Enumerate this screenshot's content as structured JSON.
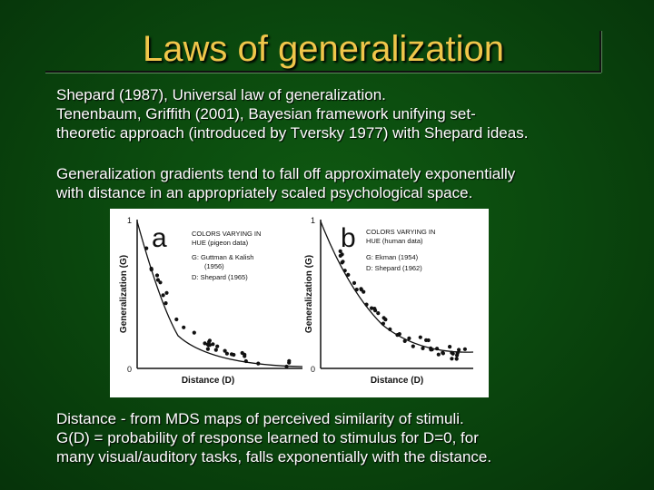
{
  "slide": {
    "title": "Laws of generalization",
    "para1": [
      "Shepard (1987), Universal law of generalization.",
      "Tenenbaum, Griffith (2001), Bayesian framework unifying set-",
      "theoretic approach (introduced by Tversky 1977) with Shepard ideas."
    ],
    "para2": [
      "Generalization gradients tend to fall off approximately exponentially",
      "with distance in an appropriately scaled psychological space."
    ],
    "para3": [
      "Distance - from MDS maps of perceived similarity of stimuli.",
      "G(D) = probability of response learned to stimulus for D=0, for",
      "many visual/auditory tasks, falls exponentially with the distance."
    ]
  },
  "figure": {
    "panel_a": {
      "letter": "a",
      "legend": [
        "COLORS VARYING IN",
        "HUE  (pigeon data)",
        "G:  Guttman & Kalish",
        "(1956)",
        "D:  Shepard (1965)"
      ],
      "ylabel": "Generalization (G)",
      "xlabel": "Distance (D)",
      "ytick_top": "1",
      "ytick_bottom": "0"
    },
    "panel_b": {
      "letter": "b",
      "legend": [
        "COLORS VARYING IN",
        "HUE  (human data)",
        "G:  Ekman (1954)",
        "D:  Shepard (1962)"
      ],
      "ylabel": "Generalization (G)",
      "xlabel": "Distance (D)",
      "ytick_top": "1",
      "ytick_bottom": "0"
    }
  },
  "colors": {
    "title": "#f0c64a",
    "body_text": "#ffffff",
    "background": "#0b4a0e"
  }
}
